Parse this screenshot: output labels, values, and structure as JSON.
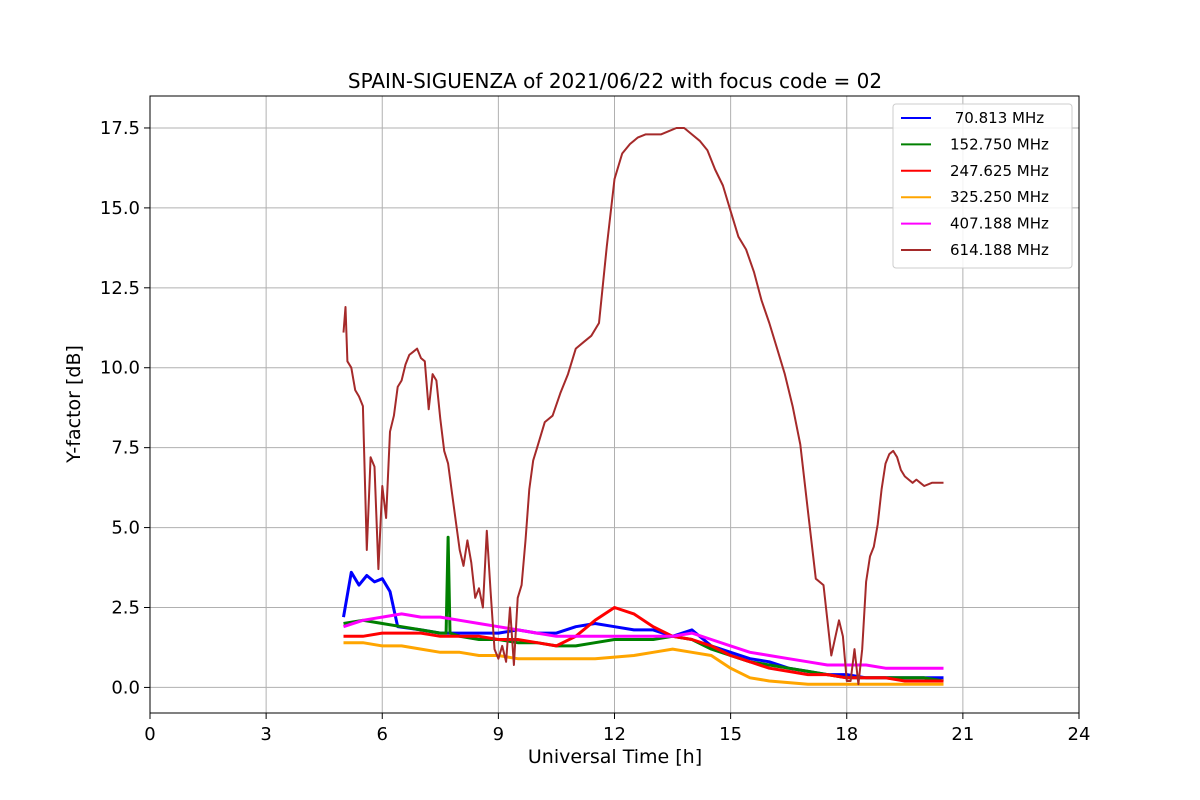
{
  "chart_data": {
    "type": "line",
    "title": "SPAIN-SIGUENZA of 2021/06/22 with focus code = 02",
    "xlabel": "Universal Time [h]",
    "ylabel": "Y-factor [dB]",
    "xlim": [
      0,
      24
    ],
    "ylim": [
      -0.8,
      18.5
    ],
    "xticks": [
      0,
      3,
      6,
      9,
      12,
      15,
      18,
      21,
      24
    ],
    "xtick_labels": [
      "0",
      "3",
      "6",
      "9",
      "12",
      "15",
      "18",
      "21",
      "24"
    ],
    "yticks": [
      0,
      2.5,
      5,
      7.5,
      10,
      12.5,
      15,
      17.5
    ],
    "ytick_labels": [
      "0.0",
      "2.5",
      "5.0",
      "7.5",
      "10.0",
      "12.5",
      "15.0",
      "17.5"
    ],
    "grid": true,
    "legend_position": "top-right",
    "series": [
      {
        "name": " 70.813 MHz",
        "color": "#0000ff",
        "x": [
          5.0,
          5.2,
          5.4,
          5.6,
          5.8,
          6.0,
          6.2,
          6.4,
          7.0,
          7.5,
          8.0,
          8.5,
          9.0,
          9.5,
          10.0,
          10.5,
          11.0,
          11.5,
          12.0,
          12.5,
          13.0,
          13.5,
          14.0,
          14.5,
          15.0,
          15.5,
          16.0,
          16.5,
          17.0,
          17.5,
          18.0,
          18.5,
          19.0,
          19.5,
          20.0,
          20.5
        ],
        "y": [
          2.2,
          3.6,
          3.2,
          3.5,
          3.3,
          3.4,
          3.0,
          1.9,
          1.8,
          1.7,
          1.7,
          1.7,
          1.7,
          1.8,
          1.7,
          1.7,
          1.9,
          2.0,
          1.9,
          1.8,
          1.8,
          1.6,
          1.8,
          1.3,
          1.1,
          0.9,
          0.8,
          0.6,
          0.5,
          0.4,
          0.4,
          0.3,
          0.3,
          0.3,
          0.3,
          0.3
        ]
      },
      {
        "name": "152.750 MHz",
        "color": "#008000",
        "x": [
          5.0,
          5.5,
          6.0,
          6.5,
          7.0,
          7.5,
          7.65,
          7.7,
          7.75,
          8.0,
          8.5,
          9.0,
          9.5,
          10.0,
          10.5,
          11.0,
          11.5,
          12.0,
          12.5,
          13.0,
          13.5,
          14.0,
          14.5,
          15.0,
          15.5,
          16.0,
          16.5,
          17.0,
          17.5,
          18.0,
          18.5,
          19.0,
          19.5,
          20.0,
          20.5
        ],
        "y": [
          2.0,
          2.1,
          2.0,
          1.9,
          1.8,
          1.7,
          1.7,
          4.7,
          1.7,
          1.6,
          1.5,
          1.5,
          1.4,
          1.4,
          1.3,
          1.3,
          1.4,
          1.5,
          1.5,
          1.5,
          1.6,
          1.5,
          1.2,
          1.0,
          0.8,
          0.7,
          0.6,
          0.5,
          0.4,
          0.3,
          0.3,
          0.3,
          0.3,
          0.3,
          0.2
        ]
      },
      {
        "name": "247.625 MHz",
        "color": "#ff0000",
        "x": [
          5.0,
          5.5,
          6.0,
          6.5,
          7.0,
          7.5,
          8.0,
          8.5,
          9.0,
          9.5,
          10.0,
          10.5,
          11.0,
          11.5,
          12.0,
          12.5,
          13.0,
          13.5,
          14.0,
          14.5,
          15.0,
          15.5,
          16.0,
          16.5,
          17.0,
          17.5,
          18.0,
          18.5,
          19.0,
          19.5,
          20.0,
          20.5
        ],
        "y": [
          1.6,
          1.6,
          1.7,
          1.7,
          1.7,
          1.6,
          1.6,
          1.6,
          1.5,
          1.5,
          1.4,
          1.3,
          1.6,
          2.1,
          2.5,
          2.3,
          1.9,
          1.6,
          1.5,
          1.3,
          1.0,
          0.8,
          0.6,
          0.5,
          0.4,
          0.4,
          0.3,
          0.3,
          0.3,
          0.2,
          0.2,
          0.2
        ]
      },
      {
        "name": "325.250 MHz",
        "color": "#ffa500",
        "x": [
          5.0,
          5.5,
          6.0,
          6.5,
          7.0,
          7.5,
          8.0,
          8.5,
          9.0,
          9.5,
          10.0,
          10.5,
          11.0,
          11.5,
          12.0,
          12.5,
          13.0,
          13.5,
          14.0,
          14.5,
          15.0,
          15.5,
          16.0,
          16.5,
          17.0,
          17.5,
          18.0,
          18.5,
          19.0,
          19.5,
          20.0,
          20.5
        ],
        "y": [
          1.4,
          1.4,
          1.3,
          1.3,
          1.2,
          1.1,
          1.1,
          1.0,
          1.0,
          0.9,
          0.9,
          0.9,
          0.9,
          0.9,
          0.95,
          1.0,
          1.1,
          1.2,
          1.1,
          1.0,
          0.6,
          0.3,
          0.2,
          0.15,
          0.1,
          0.1,
          0.1,
          0.1,
          0.1,
          0.1,
          0.1,
          0.1
        ]
      },
      {
        "name": "407.188 MHz",
        "color": "#ff00ff",
        "x": [
          5.0,
          5.5,
          6.0,
          6.5,
          7.0,
          7.5,
          8.0,
          8.5,
          9.0,
          9.5,
          10.0,
          10.5,
          11.0,
          11.5,
          12.0,
          12.5,
          13.0,
          13.5,
          14.0,
          14.5,
          15.0,
          15.5,
          16.0,
          16.5,
          17.0,
          17.5,
          18.0,
          18.5,
          19.0,
          19.5,
          20.0,
          20.5
        ],
        "y": [
          1.9,
          2.1,
          2.2,
          2.3,
          2.2,
          2.2,
          2.1,
          2.0,
          1.9,
          1.8,
          1.7,
          1.6,
          1.6,
          1.6,
          1.6,
          1.6,
          1.6,
          1.6,
          1.7,
          1.5,
          1.3,
          1.1,
          1.0,
          0.9,
          0.8,
          0.7,
          0.7,
          0.7,
          0.6,
          0.6,
          0.6,
          0.6
        ]
      },
      {
        "name": "614.188 MHz",
        "color": "#a52a2a",
        "x": [
          5.0,
          5.05,
          5.1,
          5.2,
          5.3,
          5.4,
          5.5,
          5.6,
          5.7,
          5.8,
          5.9,
          6.0,
          6.1,
          6.2,
          6.3,
          6.4,
          6.5,
          6.6,
          6.7,
          6.8,
          6.9,
          7.0,
          7.1,
          7.2,
          7.3,
          7.4,
          7.5,
          7.6,
          7.7,
          7.8,
          7.9,
          8.0,
          8.1,
          8.2,
          8.3,
          8.4,
          8.5,
          8.6,
          8.7,
          8.8,
          8.9,
          9.0,
          9.1,
          9.2,
          9.3,
          9.4,
          9.5,
          9.6,
          9.7,
          9.8,
          9.9,
          10.0,
          10.2,
          10.4,
          10.6,
          10.8,
          11.0,
          11.2,
          11.4,
          11.6,
          11.8,
          12.0,
          12.2,
          12.4,
          12.6,
          12.8,
          13.0,
          13.2,
          13.4,
          13.6,
          13.8,
          14.0,
          14.2,
          14.4,
          14.6,
          14.8,
          15.0,
          15.2,
          15.4,
          15.6,
          15.8,
          16.0,
          16.2,
          16.4,
          16.6,
          16.8,
          17.0,
          17.2,
          17.4,
          17.6,
          17.8,
          17.9,
          18.0,
          18.1,
          18.2,
          18.3,
          18.4,
          18.5,
          18.6,
          18.7,
          18.8,
          18.9,
          19.0,
          19.1,
          19.2,
          19.3,
          19.4,
          19.5,
          19.6,
          19.7,
          19.8,
          19.9,
          20.0,
          20.2,
          20.4,
          20.5
        ],
        "y": [
          11.1,
          11.9,
          10.2,
          10.0,
          9.3,
          9.1,
          8.8,
          4.3,
          7.2,
          6.9,
          3.7,
          6.3,
          5.3,
          8.0,
          8.5,
          9.4,
          9.6,
          10.1,
          10.4,
          10.5,
          10.6,
          10.3,
          10.2,
          8.7,
          9.8,
          9.6,
          8.4,
          7.4,
          7.0,
          6.1,
          5.2,
          4.3,
          3.8,
          4.6,
          3.9,
          2.8,
          3.1,
          2.5,
          4.9,
          3.0,
          1.2,
          0.9,
          1.3,
          0.8,
          2.5,
          0.7,
          2.8,
          3.2,
          4.6,
          6.2,
          7.1,
          7.5,
          8.3,
          8.5,
          9.2,
          9.8,
          10.6,
          10.8,
          11.0,
          11.4,
          13.8,
          15.9,
          16.7,
          17.0,
          17.2,
          17.3,
          17.3,
          17.3,
          17.4,
          17.5,
          17.5,
          17.3,
          17.1,
          16.8,
          16.2,
          15.7,
          14.9,
          14.1,
          13.7,
          13.0,
          12.1,
          11.4,
          10.6,
          9.8,
          8.8,
          7.6,
          5.5,
          3.4,
          3.2,
          1.0,
          2.1,
          1.6,
          0.2,
          0.2,
          1.2,
          0.1,
          1.2,
          3.3,
          4.1,
          4.4,
          5.1,
          6.2,
          7.0,
          7.3,
          7.4,
          7.2,
          6.8,
          6.6,
          6.5,
          6.4,
          6.5,
          6.4,
          6.3,
          6.4,
          6.4,
          6.4
        ]
      }
    ]
  }
}
